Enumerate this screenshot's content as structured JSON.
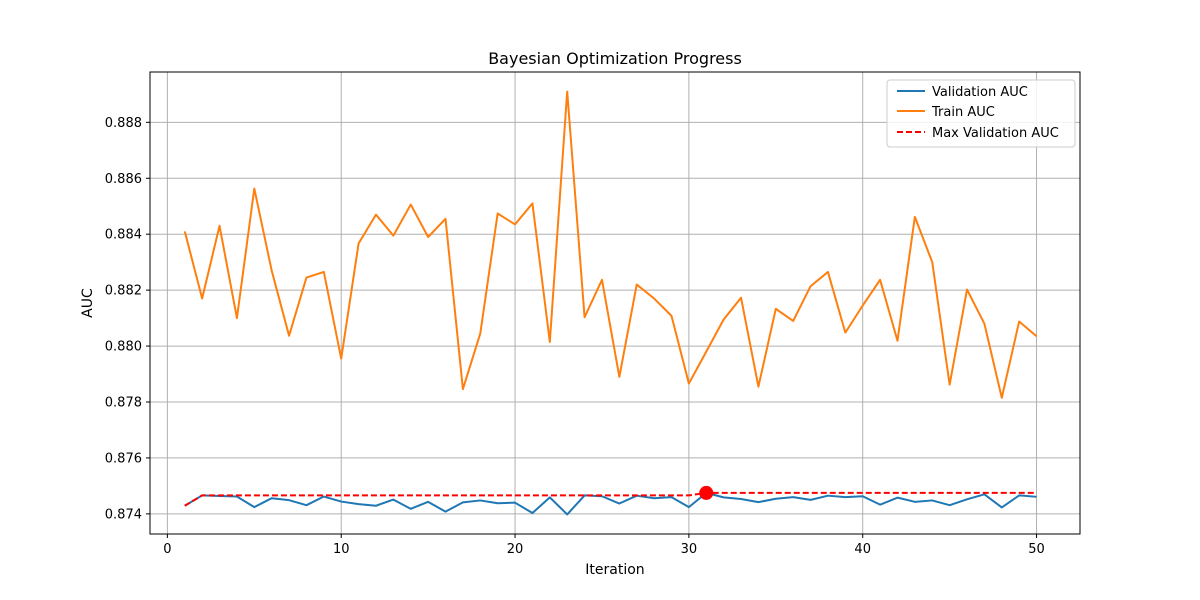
{
  "chart_data": {
    "type": "line",
    "title": "Bayesian Optimization Progress",
    "xlabel": "Iteration",
    "ylabel": "AUC",
    "xlim": [
      -1,
      52.5
    ],
    "ylim": [
      0.87328,
      0.8898
    ],
    "xticks": [
      0,
      10,
      20,
      30,
      40,
      50
    ],
    "yticks": [
      0.874,
      0.876,
      0.878,
      0.88,
      0.882,
      0.884,
      0.886,
      0.888
    ],
    "ytick_labels": [
      "0.874",
      "0.876",
      "0.878",
      "0.880",
      "0.882",
      "0.884",
      "0.886",
      "0.888"
    ],
    "grid": true,
    "legend_position": "top-right",
    "x": [
      1,
      2,
      3,
      4,
      5,
      6,
      7,
      8,
      9,
      10,
      11,
      12,
      13,
      14,
      15,
      16,
      17,
      18,
      19,
      20,
      21,
      22,
      23,
      24,
      25,
      26,
      27,
      28,
      29,
      30,
      31,
      32,
      33,
      34,
      35,
      36,
      37,
      38,
      39,
      40,
      41,
      42,
      43,
      44,
      45,
      46,
      47,
      48,
      49,
      50
    ],
    "series": [
      {
        "name": "Validation AUC",
        "color": "#1f77b4",
        "style": "solid",
        "values": [
          0.87429,
          0.87466,
          0.87464,
          0.87462,
          0.87424,
          0.87456,
          0.87449,
          0.87431,
          0.87462,
          0.87444,
          0.87435,
          0.87429,
          0.87451,
          0.87418,
          0.87443,
          0.87408,
          0.87441,
          0.87448,
          0.87438,
          0.8744,
          0.87403,
          0.87459,
          0.87398,
          0.87466,
          0.87463,
          0.87437,
          0.87465,
          0.87456,
          0.8746,
          0.87424,
          0.87475,
          0.87459,
          0.87453,
          0.87442,
          0.87454,
          0.8746,
          0.8745,
          0.87465,
          0.8746,
          0.87463,
          0.87433,
          0.87458,
          0.87443,
          0.87448,
          0.87431,
          0.87452,
          0.8747,
          0.87423,
          0.87466,
          0.87461
        ]
      },
      {
        "name": "Train AUC",
        "color": "#ff7f0e",
        "style": "solid",
        "values": [
          0.8841,
          0.8817,
          0.8843,
          0.881,
          0.88563,
          0.8827,
          0.88037,
          0.88245,
          0.88265,
          0.87955,
          0.88367,
          0.8847,
          0.88395,
          0.88506,
          0.8839,
          0.88455,
          0.87846,
          0.88045,
          0.88474,
          0.88435,
          0.8851,
          0.88015,
          0.8891,
          0.88103,
          0.88237,
          0.8789,
          0.8822,
          0.8817,
          0.88108,
          0.87866,
          0.8798,
          0.88095,
          0.88173,
          0.87855,
          0.88133,
          0.8809,
          0.88214,
          0.88265,
          0.88048,
          0.88145,
          0.88237,
          0.88019,
          0.88462,
          0.883,
          0.87862,
          0.88202,
          0.8808,
          0.87815,
          0.88088,
          0.88035
        ]
      },
      {
        "name": "Max Validation AUC",
        "color": "#ff0000",
        "style": "dashed",
        "values": [
          0.87429,
          0.87466,
          0.87466,
          0.87466,
          0.87466,
          0.87466,
          0.87466,
          0.87466,
          0.87466,
          0.87466,
          0.87466,
          0.87466,
          0.87466,
          0.87466,
          0.87466,
          0.87466,
          0.87466,
          0.87466,
          0.87466,
          0.87466,
          0.87466,
          0.87466,
          0.87466,
          0.87466,
          0.87466,
          0.87466,
          0.87466,
          0.87466,
          0.87466,
          0.87466,
          0.87475,
          0.87475,
          0.87475,
          0.87475,
          0.87475,
          0.87475,
          0.87475,
          0.87475,
          0.87475,
          0.87475,
          0.87475,
          0.87475,
          0.87475,
          0.87475,
          0.87475,
          0.87475,
          0.87475,
          0.87475,
          0.87475,
          0.87475
        ]
      }
    ],
    "highlight_point": {
      "x": 31,
      "y": 0.87475,
      "color": "#ff0000"
    }
  }
}
